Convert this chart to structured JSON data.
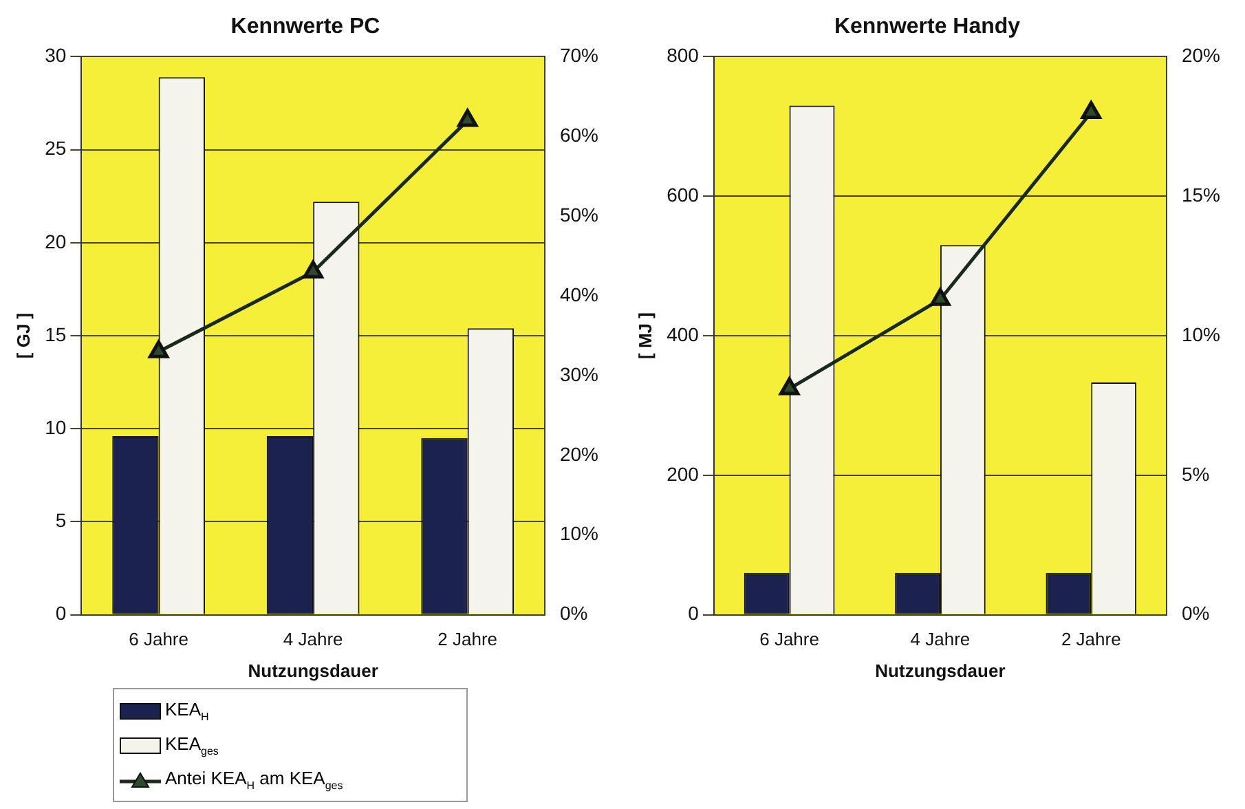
{
  "chart_data": [
    {
      "type": "bar",
      "title": "Kennwerte PC",
      "xlabel": "Nutzungsdauer",
      "ylabel": "[ GJ ]",
      "categories": [
        "6 Jahre",
        "4 Jahre",
        "2 Jahre"
      ],
      "series": [
        {
          "name": "KEA$_{H}$",
          "color": "#1c2250",
          "values": [
            9.6,
            9.6,
            9.5
          ]
        },
        {
          "name": "KEA$_{ges}$",
          "color": "#f4f4ec",
          "values": [
            28.9,
            22.2,
            15.4
          ]
        },
        {
          "name": "Antei KEA$_{H}$ am KEA$_{ges}$",
          "type": "line",
          "axis": "y2",
          "color": "#1a2a1a",
          "values": [
            33,
            43,
            62
          ]
        }
      ],
      "ylim": [
        0,
        30
      ],
      "yticks": [
        0,
        5,
        10,
        15,
        20,
        25,
        30
      ],
      "y2lim": [
        0,
        70
      ],
      "y2ticks": [
        {
          "value": 0,
          "label": "0%"
        },
        {
          "value": 10,
          "label": "10%"
        },
        {
          "value": 20,
          "label": "20%"
        },
        {
          "value": 30,
          "label": "30%"
        },
        {
          "value": 40,
          "label": "40%"
        },
        {
          "value": 50,
          "label": "50%"
        },
        {
          "value": 60,
          "label": "60%"
        },
        {
          "value": 70,
          "label": "70%"
        }
      ],
      "grid": "y",
      "legend": "bottom",
      "marker": "triangle"
    },
    {
      "type": "bar",
      "title": "Kennwerte Handy",
      "xlabel": "Nutzungsdauer",
      "ylabel": "[ MJ ]",
      "categories": [
        "6 Jahre",
        "4 Jahre",
        "2 Jahre"
      ],
      "series": [
        {
          "color": "#1c2250",
          "values": [
            60,
            60,
            60
          ]
        },
        {
          "color": "#f4f4ec",
          "values": [
            730,
            530,
            333
          ]
        },
        {
          "type": "line",
          "axis": "y2",
          "color": "#1a2a1a",
          "values": [
            8.1,
            11.3,
            18
          ]
        }
      ],
      "ylim": [
        0,
        800
      ],
      "yticks": [
        0,
        200,
        400,
        600,
        800
      ],
      "y2lim": [
        0,
        20
      ],
      "y2ticks": [
        {
          "value": 0,
          "label": "0%"
        },
        {
          "value": 5,
          "label": "5%"
        },
        {
          "value": 10,
          "label": "10%"
        },
        {
          "value": 15,
          "label": "15%"
        },
        {
          "value": 20,
          "label": "20%"
        }
      ],
      "grid": "y",
      "legend": false,
      "marker": "triangle"
    }
  ]
}
